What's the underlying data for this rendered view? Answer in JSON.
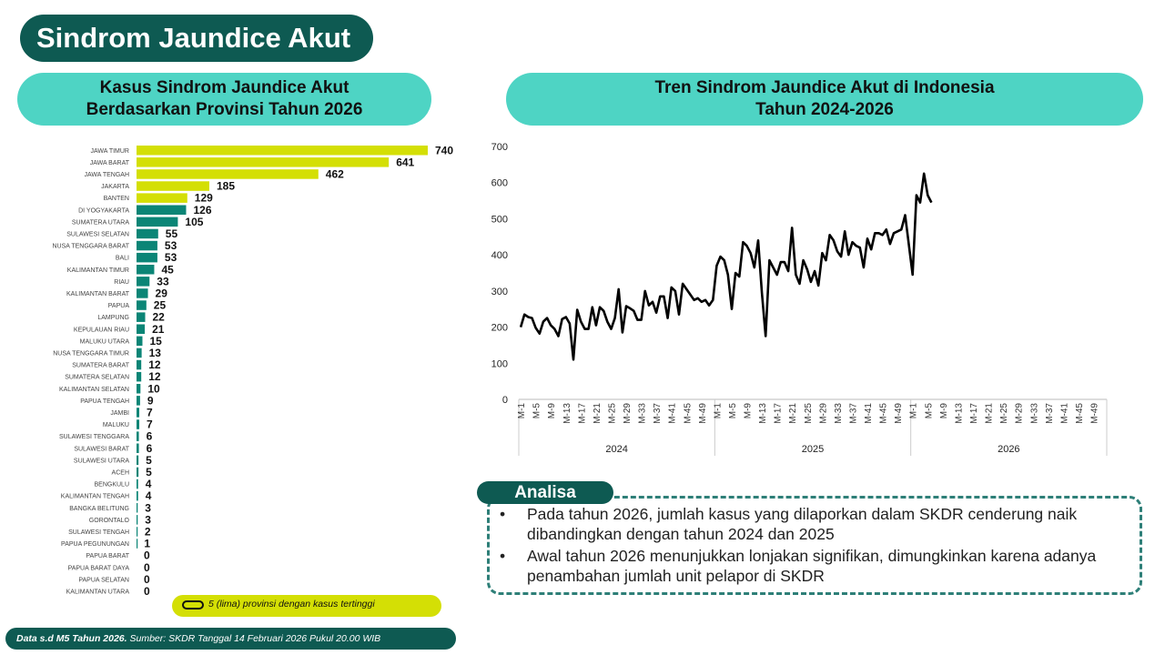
{
  "page_title": "Sindrom Jaundice Akut",
  "left_panel": {
    "title_line1": "Kasus Sindrom Jaundice Akut",
    "title_line2": "Berdasarkan Provinsi Tahun 2026",
    "legend_text": "5 (lima) provinsi dengan kasus tertinggi"
  },
  "right_panel": {
    "title_line1": "Tren Sindrom Jaundice Akut di Indonesia",
    "title_line2": "Tahun 2024-2026"
  },
  "footer": {
    "bold": "Data s.d M5 Tahun 2026.",
    "rest": " Sumber: SKDR Tanggal 14 Februari 2026 Pukul 20.00 WIB"
  },
  "analysis": {
    "title": "Analisa",
    "bullets": [
      "Pada tahun 2026, jumlah kasus yang dilaporkan dalam SKDR cenderung naik dibandingkan dengan tahun 2024 dan 2025",
      "Awal tahun 2026 menunjukkan lonjakan signifikan, dimungkinkan karena adanya penambahan jumlah unit pelapor di SKDR"
    ]
  },
  "colors": {
    "dark_teal": "#0e5a52",
    "light_teal": "#4ed4c4",
    "highlight": "#d4df05",
    "bar_teal": "#0b8576"
  },
  "chart_data": [
    {
      "type": "bar",
      "orientation": "horizontal",
      "title": "Kasus Sindrom Jaundice Akut Berdasarkan Provinsi Tahun 2026",
      "top_highlighted": 5,
      "categories": [
        "JAWA TIMUR",
        "JAWA BARAT",
        "JAWA TENGAH",
        "JAKARTA",
        "BANTEN",
        "DI YOGYAKARTA",
        "SUMATERA UTARA",
        "SULAWESI SELATAN",
        "NUSA TENGGARA BARAT",
        "BALI",
        "KALIMANTAN TIMUR",
        "RIAU",
        "KALIMANTAN BARAT",
        "PAPUA",
        "LAMPUNG",
        "KEPULAUAN RIAU",
        "MALUKU UTARA",
        "NUSA TENGGARA TIMUR",
        "SUMATERA BARAT",
        "SUMATERA SELATAN",
        "KALIMANTAN SELATAN",
        "PAPUA TENGAH",
        "JAMBI",
        "MALUKU",
        "SULAWESI TENGGARA",
        "SULAWESI BARAT",
        "SULAWESI UTARA",
        "ACEH",
        "BENGKULU",
        "KALIMANTAN TENGAH",
        "BANGKA BELITUNG",
        "GORONTALO",
        "SULAWESI TENGAH",
        "PAPUA PEGUNUNGAN",
        "PAPUA BARAT",
        "PAPUA BARAT DAYA",
        "PAPUA SELATAN",
        "KALIMANTAN UTARA"
      ],
      "values": [
        740,
        641,
        462,
        185,
        129,
        126,
        105,
        55,
        53,
        53,
        45,
        33,
        29,
        25,
        22,
        21,
        15,
        13,
        12,
        12,
        10,
        9,
        7,
        7,
        6,
        6,
        5,
        5,
        4,
        4,
        3,
        3,
        2,
        1,
        0,
        0,
        0,
        0
      ]
    },
    {
      "type": "line",
      "title": "Tren Sindrom Jaundice Akut di Indonesia Tahun 2024-2026",
      "ylim": [
        0,
        700
      ],
      "yticks": [
        0,
        100,
        200,
        300,
        400,
        500,
        600,
        700
      ],
      "years": [
        "2024",
        "2025",
        "2026"
      ],
      "tick_labels": [
        "M-1",
        "M-5",
        "M-9",
        "M-13",
        "M-17",
        "M-21",
        "M-25",
        "M-29",
        "M-33",
        "M-37",
        "M-41",
        "M-45",
        "M-49"
      ],
      "series": [
        {
          "year": "2024",
          "values": [
            200,
            235,
            228,
            225,
            198,
            182,
            215,
            225,
            205,
            195,
            175,
            222,
            228,
            210,
            110,
            248,
            215,
            195,
            195,
            255,
            205,
            255,
            245,
            215,
            195,
            225,
            305,
            185,
            258,
            252,
            245,
            220,
            220,
            300,
            260,
            270,
            240,
            285,
            285,
            225,
            310,
            300,
            235,
            320,
            305,
            290,
            275,
            280,
            270,
            275,
            260,
            275
          ]
        },
        {
          "year": "2025",
          "values": [
            370,
            395,
            385,
            345,
            250,
            350,
            340,
            435,
            425,
            405,
            365,
            440,
            295,
            175,
            385,
            365,
            345,
            380,
            380,
            355,
            475,
            345,
            320,
            385,
            360,
            325,
            355,
            315,
            405,
            385,
            455,
            440,
            410,
            395,
            465,
            400,
            435,
            425,
            420,
            365,
            445,
            415,
            460,
            460,
            455,
            470,
            430,
            460,
            465,
            470,
            510
          ]
        },
        {
          "year": "2026",
          "values": [
            345,
            565,
            545,
            625,
            565,
            545
          ]
        }
      ]
    }
  ]
}
